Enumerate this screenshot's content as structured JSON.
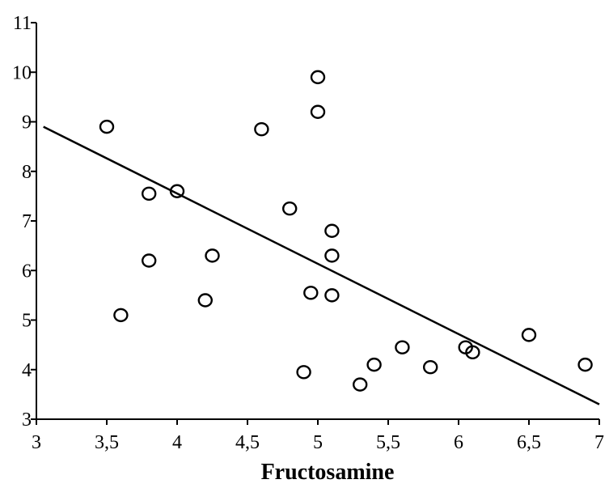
{
  "chart_data": {
    "type": "scatter",
    "title": "",
    "xlabel": "Fructosamine",
    "ylabel": "",
    "xlim": [
      3,
      7
    ],
    "ylim": [
      3,
      11
    ],
    "x_ticks": [
      3,
      3.5,
      4,
      4.5,
      5,
      5.5,
      6,
      6.5,
      7
    ],
    "x_tick_labels": [
      "3",
      "3,5",
      "4",
      "4,5",
      "5",
      "5,5",
      "6",
      "6,5",
      "7"
    ],
    "y_ticks": [
      3,
      4,
      5,
      6,
      7,
      8,
      9,
      10,
      11
    ],
    "y_tick_labels": [
      "3",
      "4",
      "5",
      "6",
      "7",
      "8",
      "9",
      "10",
      "11"
    ],
    "grid": false,
    "legend": "none",
    "marker": "open-circle",
    "points": [
      {
        "x": 3.5,
        "y": 8.9
      },
      {
        "x": 3.6,
        "y": 5.1
      },
      {
        "x": 3.8,
        "y": 7.55
      },
      {
        "x": 3.8,
        "y": 6.2
      },
      {
        "x": 4.0,
        "y": 7.6
      },
      {
        "x": 4.2,
        "y": 5.4
      },
      {
        "x": 4.25,
        "y": 6.3
      },
      {
        "x": 4.6,
        "y": 8.85
      },
      {
        "x": 4.8,
        "y": 7.25
      },
      {
        "x": 4.9,
        "y": 3.95
      },
      {
        "x": 4.95,
        "y": 5.55
      },
      {
        "x": 5.0,
        "y": 9.9
      },
      {
        "x": 5.0,
        "y": 9.2
      },
      {
        "x": 5.1,
        "y": 6.8
      },
      {
        "x": 5.1,
        "y": 6.3
      },
      {
        "x": 5.1,
        "y": 5.5
      },
      {
        "x": 5.3,
        "y": 3.7
      },
      {
        "x": 5.4,
        "y": 4.1
      },
      {
        "x": 5.6,
        "y": 4.45
      },
      {
        "x": 5.8,
        "y": 4.05
      },
      {
        "x": 6.05,
        "y": 4.45
      },
      {
        "x": 6.1,
        "y": 4.35
      },
      {
        "x": 6.5,
        "y": 4.7
      },
      {
        "x": 6.9,
        "y": 4.1
      }
    ],
    "regression_line": {
      "x": [
        3.05,
        7.0
      ],
      "y": [
        8.9,
        3.3
      ]
    }
  }
}
